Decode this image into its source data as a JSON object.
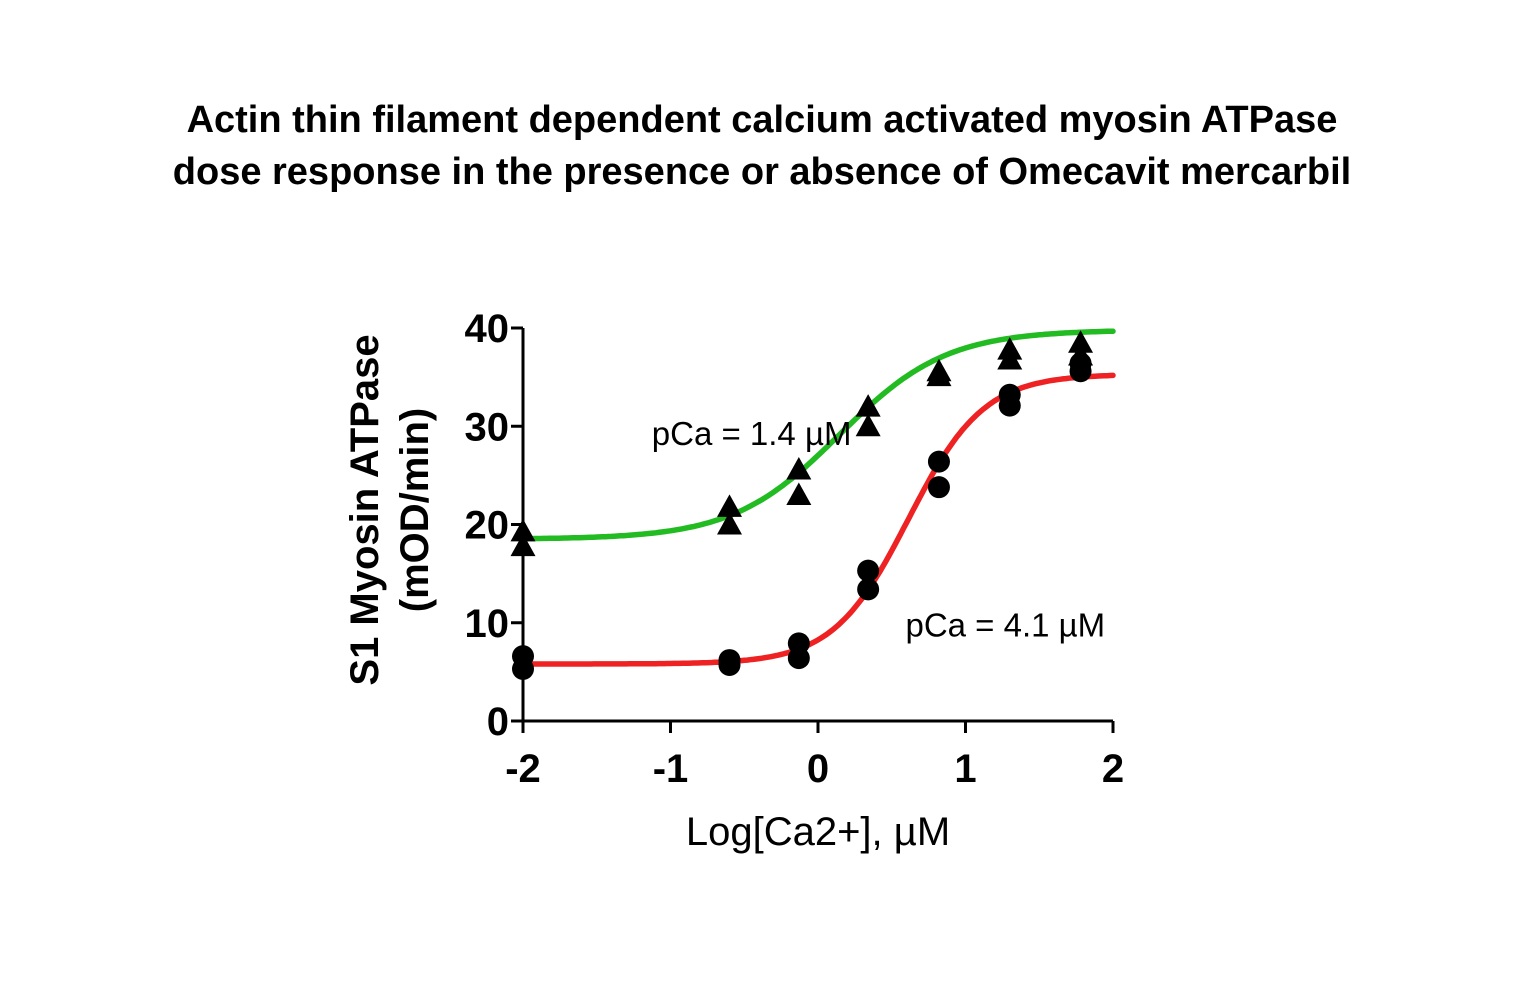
{
  "chart_data": {
    "type": "scatter",
    "title": [
      "Actin thin filament dependent calcium activated myosin ATPase",
      "dose response in the presence or absence of Omecavit mercarbil"
    ],
    "xlabel": "Log[Ca2+], µM",
    "ylabel": [
      "S1 Myosin ATPase",
      "(mOD/min)"
    ],
    "xlim": [
      -2,
      2
    ],
    "ylim": [
      0,
      40
    ],
    "xticks": [
      -2,
      -1,
      0,
      1,
      2
    ],
    "yticks": [
      0,
      10,
      20,
      30,
      40
    ],
    "grid": false,
    "annotations": [
      {
        "text": "pCa = 1.4 µM",
        "x": -0.45,
        "y": 29.2
      },
      {
        "text": "pCa = 4.1 µM",
        "x": 1.27,
        "y": 9.7
      }
    ],
    "series": [
      {
        "marker": "triangle",
        "line_color": "#22bb22",
        "points": [
          [
            -2,
            19.3
          ],
          [
            -2,
            17.8
          ],
          [
            -0.6,
            21.8
          ],
          [
            -0.6,
            20.0
          ],
          [
            -0.13,
            25.6
          ],
          [
            -0.13,
            23.0
          ],
          [
            0.34,
            32.0
          ],
          [
            0.34,
            30.0
          ],
          [
            0.82,
            35.6
          ],
          [
            0.82,
            35.1
          ],
          [
            1.3,
            37.8
          ],
          [
            1.3,
            36.8
          ],
          [
            1.78,
            38.5
          ],
          [
            1.78,
            37.2
          ]
        ],
        "fit": {
          "bottom": 18.5,
          "top": 39.8,
          "logEC50": 0.146,
          "hill": 1.2
        }
      },
      {
        "marker": "circle",
        "line_color": "#ee2222",
        "points": [
          [
            -2,
            6.6
          ],
          [
            -2,
            5.3
          ],
          [
            -0.6,
            6.2
          ],
          [
            -0.6,
            5.7
          ],
          [
            -0.13,
            7.9
          ],
          [
            -0.13,
            6.4
          ],
          [
            0.34,
            15.3
          ],
          [
            0.34,
            13.4
          ],
          [
            0.82,
            26.4
          ],
          [
            0.82,
            23.8
          ],
          [
            1.3,
            33.2
          ],
          [
            1.3,
            32.1
          ],
          [
            1.78,
            36.4
          ],
          [
            1.78,
            35.6
          ]
        ],
        "fit": {
          "bottom": 5.8,
          "top": 35.3,
          "logEC50": 0.613,
          "hill": 1.7
        }
      }
    ]
  }
}
